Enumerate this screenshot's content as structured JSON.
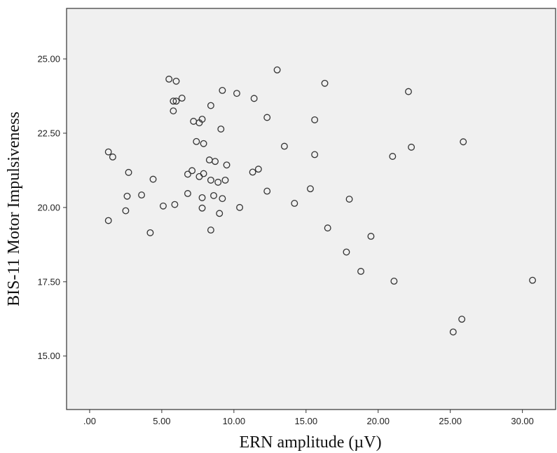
{
  "chart_data": {
    "type": "scatter",
    "title": "",
    "xlabel": "ERN amplitude (µV)",
    "ylabel": "BIS-11 Motor Impulsiveness",
    "xlim": [
      -1.6,
      32.3
    ],
    "ylim": [
      13.2,
      26.7
    ],
    "x_ticks": [
      0,
      5,
      10,
      15,
      20,
      25,
      30
    ],
    "x_tick_labels": [
      ".00",
      "5.00",
      "10.00",
      "15.00",
      "20.00",
      "25.00",
      "30.00"
    ],
    "y_ticks": [
      15,
      17.5,
      20,
      22.5,
      25
    ],
    "y_tick_labels": [
      "15.00",
      "17.50",
      "20.00",
      "22.50",
      "25.00"
    ],
    "grid": false,
    "legend": "none",
    "plot_background": "#f0f0f0",
    "marker_color": "#333333",
    "series": [
      {
        "points": [
          [
            1.3,
            21.87
          ],
          [
            1.6,
            21.7
          ],
          [
            1.3,
            19.56
          ],
          [
            2.6,
            20.38
          ],
          [
            2.5,
            19.89
          ],
          [
            2.7,
            21.18
          ],
          [
            3.6,
            20.42
          ],
          [
            4.2,
            19.15
          ],
          [
            4.4,
            20.95
          ],
          [
            5.1,
            20.05
          ],
          [
            5.5,
            24.32
          ],
          [
            6.0,
            24.25
          ],
          [
            5.8,
            23.58
          ],
          [
            6.0,
            23.58
          ],
          [
            6.4,
            23.68
          ],
          [
            5.8,
            23.25
          ],
          [
            5.9,
            20.1
          ],
          [
            6.8,
            21.12
          ],
          [
            7.1,
            21.24
          ],
          [
            6.8,
            20.47
          ],
          [
            7.2,
            22.9
          ],
          [
            7.6,
            22.85
          ],
          [
            7.8,
            22.97
          ],
          [
            7.4,
            22.22
          ],
          [
            7.9,
            22.15
          ],
          [
            7.6,
            21.04
          ],
          [
            7.9,
            21.14
          ],
          [
            7.8,
            20.33
          ],
          [
            7.8,
            19.98
          ],
          [
            8.4,
            23.43
          ],
          [
            8.3,
            21.6
          ],
          [
            8.7,
            21.55
          ],
          [
            8.4,
            20.92
          ],
          [
            8.6,
            20.4
          ],
          [
            8.9,
            20.85
          ],
          [
            8.4,
            19.24
          ],
          [
            9.2,
            23.94
          ],
          [
            9.1,
            22.64
          ],
          [
            9.5,
            21.43
          ],
          [
            9.4,
            20.92
          ],
          [
            9.2,
            20.3
          ],
          [
            9.0,
            19.8
          ],
          [
            10.2,
            23.84
          ],
          [
            10.4,
            20.0
          ],
          [
            11.4,
            23.67
          ],
          [
            11.3,
            21.19
          ],
          [
            11.7,
            21.29
          ],
          [
            12.3,
            23.03
          ],
          [
            12.3,
            20.55
          ],
          [
            13.0,
            24.63
          ],
          [
            13.5,
            22.06
          ],
          [
            14.2,
            20.14
          ],
          [
            15.3,
            20.63
          ],
          [
            15.6,
            22.95
          ],
          [
            15.6,
            21.78
          ],
          [
            16.3,
            24.18
          ],
          [
            16.5,
            19.31
          ],
          [
            17.8,
            18.5
          ],
          [
            18.0,
            20.28
          ],
          [
            18.8,
            17.85
          ],
          [
            19.5,
            19.03
          ],
          [
            21.0,
            21.72
          ],
          [
            21.1,
            17.52
          ],
          [
            22.1,
            23.9
          ],
          [
            22.3,
            22.03
          ],
          [
            25.2,
            15.81
          ],
          [
            25.8,
            16.24
          ],
          [
            25.9,
            22.21
          ],
          [
            30.7,
            17.55
          ]
        ]
      }
    ]
  }
}
